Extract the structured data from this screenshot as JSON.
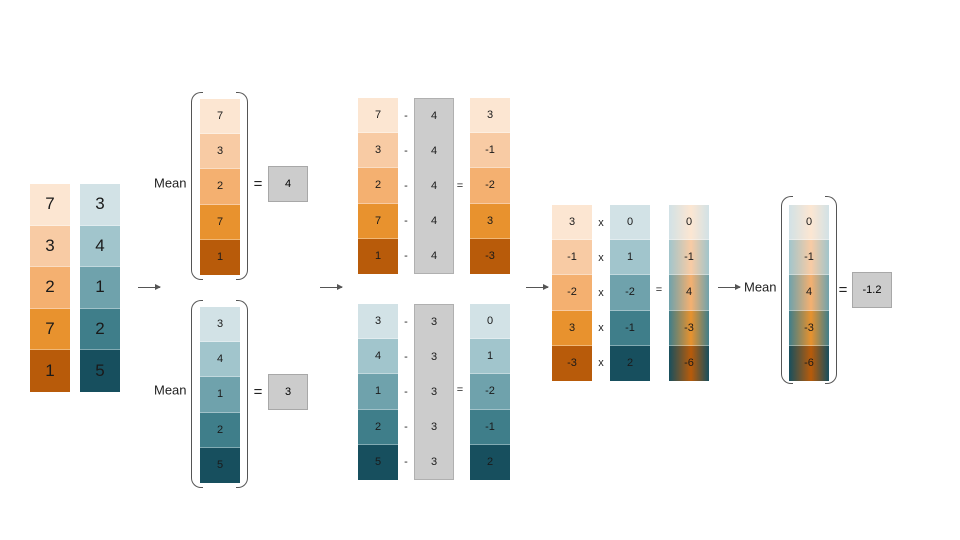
{
  "colors": {
    "orange": [
      "#fce6d2",
      "#f8cba4",
      "#f4b070",
      "#e8922e",
      "#b85b0a"
    ],
    "teal": [
      "#d2e2e6",
      "#a1c5cc",
      "#6fa2ac",
      "#3f7e8a",
      "#174f5e"
    ],
    "gray": "#cccccc"
  },
  "labels": {
    "mean": "Mean",
    "equals": "=",
    "minus": "-",
    "times": "x"
  },
  "data": {
    "x": [
      "7",
      "3",
      "2",
      "7",
      "1"
    ],
    "y": [
      "3",
      "4",
      "1",
      "2",
      "5"
    ],
    "mean_x": "4",
    "mean_y": "3",
    "dev_x": [
      "3",
      "-1",
      "-2",
      "3",
      "-3"
    ],
    "dev_y": [
      "0",
      "1",
      "-2",
      "-1",
      "2"
    ],
    "products": [
      "0",
      "-1",
      "4",
      "-3",
      "-6"
    ],
    "covariance": "-1.2"
  }
}
